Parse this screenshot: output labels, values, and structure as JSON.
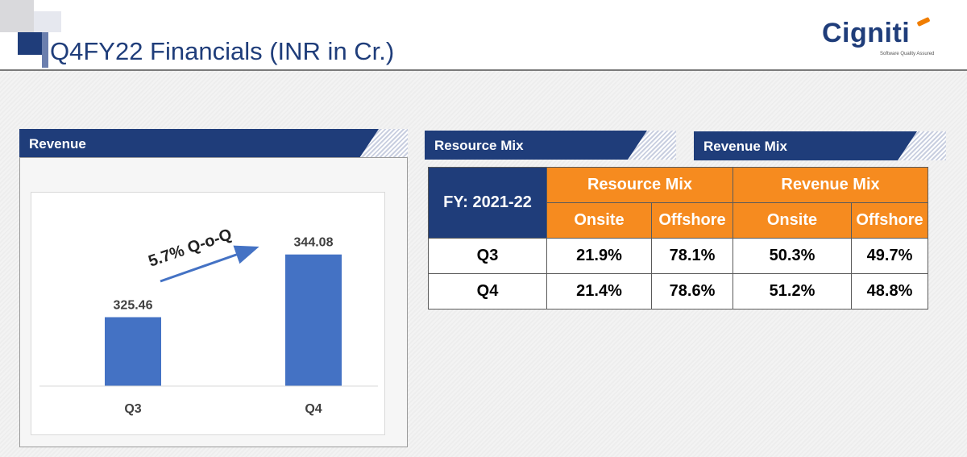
{
  "page": {
    "title": "Q4FY22 Financials (INR in Cr.)",
    "logo_text": "Cigniti",
    "logo_tagline": "Software Quality Assured"
  },
  "sections": {
    "revenue": "Revenue",
    "resource_mix": "Resource Mix",
    "revenue_mix": "Revenue Mix"
  },
  "chart_data": {
    "type": "bar",
    "categories": [
      "Q3",
      "Q4"
    ],
    "values": [
      325.46,
      344.08
    ],
    "value_labels": [
      "325.46",
      "344.08"
    ],
    "annotation": "5.7% Q-o-Q",
    "bar_color": "#4472c4",
    "ylim": [
      305,
      350
    ]
  },
  "table": {
    "corner": "FY: 2021-22",
    "groups": [
      "Resource Mix",
      "Revenue Mix"
    ],
    "subheaders": [
      "Onsite",
      "Offshore",
      "Onsite",
      "Offshore"
    ],
    "rows": [
      {
        "label": "Q3",
        "values": [
          "21.9%",
          "78.1%",
          "50.3%",
          "49.7%"
        ]
      },
      {
        "label": "Q4",
        "values": [
          "21.4%",
          "78.6%",
          "51.2%",
          "48.8%"
        ]
      }
    ]
  },
  "colors": {
    "navy": "#1f3d7a",
    "orange": "#f68b1f",
    "bar": "#4472c4"
  }
}
